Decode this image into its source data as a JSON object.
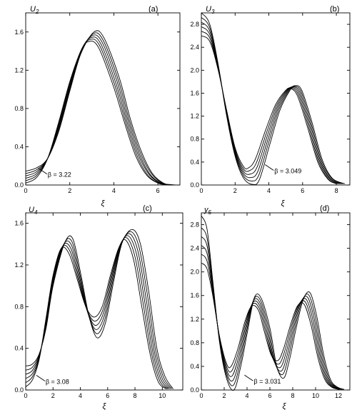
{
  "chart_data": [
    {
      "type": "line",
      "panel_tag": "(a)",
      "ylabel": "U2",
      "ylabel_main": "U",
      "ylabel_sub": "2",
      "xlabel": "ξ",
      "xlim": [
        0,
        7
      ],
      "ylim": [
        0,
        1.8
      ],
      "xticks": [
        0,
        2,
        4,
        6
      ],
      "yticks": [
        0.0,
        0.4,
        0.8,
        1.2,
        1.6
      ],
      "ytick_labels": [
        "0.0",
        "0.4",
        "0.8",
        "1.2",
        "1.6"
      ],
      "annotation": "β = 3.22",
      "annotation_at": [
        0.9,
        0.13
      ],
      "series": [
        {
          "x": [
            0,
            0.5,
            1,
            1.5,
            2,
            2.5,
            2.85,
            3.3,
            4,
            4.5,
            5,
            5.5,
            6,
            6.3,
            6.6
          ],
          "y": [
            0.02,
            0.08,
            0.28,
            0.66,
            1.08,
            1.4,
            1.5,
            1.44,
            1.02,
            0.64,
            0.3,
            0.1,
            0.02,
            0.005,
            0
          ]
        },
        {
          "x": [
            0,
            0.5,
            1,
            1.5,
            2,
            2.5,
            2.9,
            3.35,
            4.05,
            4.55,
            5.05,
            5.55,
            6.05,
            6.35,
            6.65
          ],
          "y": [
            0.045,
            0.1,
            0.28,
            0.64,
            1.06,
            1.4,
            1.52,
            1.46,
            1.04,
            0.65,
            0.31,
            0.1,
            0.02,
            0.005,
            0
          ]
        },
        {
          "x": [
            0,
            0.5,
            1,
            1.5,
            2,
            2.5,
            2.95,
            3.4,
            4.1,
            4.6,
            5.1,
            5.6,
            6.1,
            6.4,
            6.7
          ],
          "y": [
            0.07,
            0.12,
            0.28,
            0.62,
            1.04,
            1.4,
            1.54,
            1.48,
            1.06,
            0.66,
            0.32,
            0.11,
            0.02,
            0.005,
            0
          ]
        },
        {
          "x": [
            0,
            0.5,
            1,
            1.5,
            2,
            2.5,
            3.0,
            3.45,
            4.15,
            4.65,
            5.15,
            5.65,
            6.15,
            6.45,
            6.75
          ],
          "y": [
            0.095,
            0.14,
            0.28,
            0.6,
            1.02,
            1.39,
            1.56,
            1.5,
            1.08,
            0.67,
            0.33,
            0.11,
            0.02,
            0.005,
            0
          ]
        },
        {
          "x": [
            0,
            0.5,
            1,
            1.5,
            2,
            2.5,
            3.05,
            3.5,
            4.2,
            4.7,
            5.2,
            5.7,
            6.2,
            6.5,
            6.8
          ],
          "y": [
            0.12,
            0.16,
            0.28,
            0.58,
            1.0,
            1.38,
            1.58,
            1.52,
            1.1,
            0.68,
            0.34,
            0.12,
            0.02,
            0.005,
            0
          ]
        },
        {
          "x": [
            0,
            0.5,
            1,
            1.5,
            2,
            2.5,
            3.1,
            3.55,
            4.25,
            4.75,
            5.25,
            5.75,
            6.25,
            6.55,
            6.85
          ],
          "y": [
            0.145,
            0.18,
            0.28,
            0.56,
            0.98,
            1.37,
            1.6,
            1.54,
            1.12,
            0.69,
            0.35,
            0.12,
            0.02,
            0.005,
            0
          ]
        }
      ]
    },
    {
      "type": "line",
      "panel_tag": "(b)",
      "ylabel": "U3",
      "ylabel_main": "U",
      "ylabel_sub": "3",
      "xlabel": "ξ",
      "xlim": [
        0,
        8.8
      ],
      "ylim": [
        0,
        3.0
      ],
      "xticks": [
        0,
        2,
        4,
        6,
        8
      ],
      "yticks": [
        0.0,
        0.4,
        0.8,
        1.2,
        1.6,
        2.0,
        2.4,
        2.8
      ],
      "ytick_labels": [
        "0.0",
        "0.4",
        "0.8",
        "1.2",
        "1.6",
        "2.0",
        "2.4",
        "2.8"
      ],
      "annotation": "β = 3.049",
      "annotation_at": [
        4.2,
        0.28
      ],
      "series": [
        {
          "x": [
            0,
            0.5,
            1,
            1.5,
            2,
            2.5,
            2.8,
            3.2,
            3.8,
            4.4,
            5.0,
            5.3,
            5.7,
            6.3,
            6.9,
            7.5,
            8.0
          ],
          "y": [
            2.6,
            2.5,
            2.0,
            1.3,
            0.65,
            0.32,
            0.3,
            0.45,
            0.95,
            1.4,
            1.65,
            1.68,
            1.55,
            1.0,
            0.4,
            0.1,
            0.02
          ]
        },
        {
          "x": [
            0,
            0.5,
            1,
            1.5,
            2,
            2.5,
            2.85,
            3.25,
            3.85,
            4.45,
            5.05,
            5.35,
            5.75,
            6.35,
            6.95,
            7.55,
            8.1
          ],
          "y": [
            2.68,
            2.56,
            2.02,
            1.28,
            0.62,
            0.28,
            0.25,
            0.38,
            0.9,
            1.38,
            1.65,
            1.69,
            1.57,
            1.02,
            0.41,
            0.1,
            0.02
          ]
        },
        {
          "x": [
            0,
            0.5,
            1,
            1.5,
            2,
            2.5,
            2.9,
            3.3,
            3.9,
            4.5,
            5.1,
            5.4,
            5.8,
            6.4,
            7.0,
            7.6,
            8.2
          ],
          "y": [
            2.76,
            2.62,
            2.04,
            1.26,
            0.59,
            0.24,
            0.19,
            0.31,
            0.85,
            1.36,
            1.65,
            1.7,
            1.59,
            1.04,
            0.42,
            0.11,
            0.02
          ]
        },
        {
          "x": [
            0,
            0.5,
            1,
            1.5,
            2,
            2.5,
            2.95,
            3.35,
            3.95,
            4.55,
            5.15,
            5.45,
            5.85,
            6.45,
            7.05,
            7.65,
            8.3
          ],
          "y": [
            2.84,
            2.68,
            2.06,
            1.24,
            0.56,
            0.2,
            0.13,
            0.24,
            0.8,
            1.34,
            1.65,
            1.71,
            1.61,
            1.06,
            0.43,
            0.11,
            0.02
          ]
        },
        {
          "x": [
            0,
            0.5,
            1,
            1.5,
            2,
            2.5,
            3.0,
            3.4,
            4.0,
            4.6,
            5.2,
            5.5,
            5.9,
            6.5,
            7.1,
            7.7,
            8.4
          ],
          "y": [
            2.92,
            2.74,
            2.08,
            1.22,
            0.53,
            0.16,
            0.07,
            0.17,
            0.75,
            1.32,
            1.65,
            1.72,
            1.63,
            1.08,
            0.44,
            0.12,
            0.02
          ]
        },
        {
          "x": [
            0,
            0.5,
            1,
            1.5,
            2,
            2.5,
            3.05,
            3.45,
            4.05,
            4.65,
            5.25,
            5.55,
            5.95,
            6.55,
            7.15,
            7.75,
            8.5
          ],
          "y": [
            3.0,
            2.8,
            2.1,
            1.2,
            0.5,
            0.12,
            0.01,
            0.1,
            0.7,
            1.3,
            1.65,
            1.73,
            1.65,
            1.1,
            0.45,
            0.12,
            0.02
          ]
        }
      ]
    },
    {
      "type": "line",
      "panel_tag": "(c)",
      "ylabel": "U4",
      "ylabel_main": "U",
      "ylabel_sub": "4",
      "xlabel": "ξ",
      "xlim": [
        0,
        11.5
      ],
      "ylim": [
        0,
        1.7
      ],
      "xticks": [
        0,
        2,
        4,
        6,
        8,
        10
      ],
      "yticks": [
        0.0,
        0.4,
        0.8,
        1.2,
        1.6
      ],
      "ytick_labels": [
        "0.0",
        "0.4",
        "0.8",
        "1.2",
        "1.6"
      ],
      "annotation": "β = 3.08",
      "annotation_at": [
        1.3,
        0.1
      ],
      "series": [
        {
          "x": [
            0,
            0.5,
            1,
            1.5,
            2,
            2.6,
            3.2,
            3.8,
            4.4,
            5.0,
            5.6,
            6.2,
            6.8,
            7.3,
            7.9,
            8.5,
            9.1,
            9.7,
            10.3
          ],
          "y": [
            0.03,
            0.1,
            0.3,
            0.7,
            1.1,
            1.36,
            1.3,
            1.05,
            0.8,
            0.7,
            0.8,
            1.1,
            1.36,
            1.44,
            1.25,
            0.8,
            0.35,
            0.08,
            0.01
          ]
        },
        {
          "x": [
            0,
            0.5,
            1,
            1.5,
            2,
            2.65,
            3.25,
            3.85,
            4.45,
            5.05,
            5.65,
            6.25,
            6.85,
            7.4,
            8.0,
            8.6,
            9.2,
            9.8,
            10.4
          ],
          "y": [
            0.07,
            0.13,
            0.31,
            0.68,
            1.08,
            1.37,
            1.33,
            1.06,
            0.78,
            0.66,
            0.77,
            1.09,
            1.37,
            1.46,
            1.28,
            0.83,
            0.36,
            0.09,
            0.01
          ]
        },
        {
          "x": [
            0,
            0.5,
            1,
            1.5,
            2,
            2.7,
            3.3,
            3.9,
            4.5,
            5.1,
            5.7,
            6.3,
            6.9,
            7.5,
            8.1,
            8.7,
            9.3,
            9.9,
            10.5
          ],
          "y": [
            0.11,
            0.16,
            0.32,
            0.66,
            1.06,
            1.38,
            1.36,
            1.07,
            0.76,
            0.62,
            0.74,
            1.08,
            1.38,
            1.48,
            1.31,
            0.86,
            0.37,
            0.1,
            0.01
          ]
        },
        {
          "x": [
            0,
            0.5,
            1,
            1.5,
            2,
            2.75,
            3.35,
            3.95,
            4.55,
            5.15,
            5.75,
            6.35,
            6.95,
            7.6,
            8.2,
            8.8,
            9.4,
            10.0,
            10.6
          ],
          "y": [
            0.15,
            0.19,
            0.33,
            0.64,
            1.04,
            1.39,
            1.39,
            1.08,
            0.74,
            0.58,
            0.71,
            1.07,
            1.39,
            1.5,
            1.34,
            0.89,
            0.38,
            0.11,
            0.01
          ]
        },
        {
          "x": [
            0,
            0.5,
            1,
            1.5,
            2,
            2.8,
            3.4,
            4.0,
            4.6,
            5.2,
            5.8,
            6.4,
            7.0,
            7.7,
            8.3,
            8.9,
            9.5,
            10.1,
            10.7
          ],
          "y": [
            0.19,
            0.22,
            0.34,
            0.62,
            1.02,
            1.4,
            1.42,
            1.09,
            0.72,
            0.54,
            0.68,
            1.06,
            1.4,
            1.52,
            1.37,
            0.92,
            0.39,
            0.12,
            0.01
          ]
        },
        {
          "x": [
            0,
            0.5,
            1,
            1.5,
            2,
            2.85,
            3.45,
            4.05,
            4.65,
            5.25,
            5.85,
            6.45,
            7.05,
            7.8,
            8.4,
            9.0,
            9.6,
            10.2,
            10.8
          ],
          "y": [
            0.23,
            0.25,
            0.35,
            0.6,
            1.0,
            1.41,
            1.45,
            1.1,
            0.7,
            0.5,
            0.65,
            1.05,
            1.41,
            1.54,
            1.4,
            0.95,
            0.4,
            0.13,
            0.01
          ]
        }
      ]
    },
    {
      "type": "line",
      "panel_tag": "(d)",
      "ylabel": "y5",
      "ylabel_main": "y",
      "ylabel_sub": "5",
      "xlabel": "ξ",
      "xlim": [
        0,
        13
      ],
      "ylim": [
        0,
        3.0
      ],
      "xticks": [
        0,
        2,
        4,
        6,
        8,
        10,
        12
      ],
      "yticks": [
        0.0,
        0.4,
        0.8,
        1.2,
        1.6,
        2.0,
        2.4,
        2.8
      ],
      "ytick_labels": [
        "0.0",
        "0.4",
        "0.8",
        "1.2",
        "1.6",
        "2.0",
        "2.4",
        "2.8"
      ],
      "annotation": "β = 3.031",
      "annotation_at": [
        4.4,
        0.18
      ],
      "series": [
        {
          "x": [
            0,
            0.5,
            1,
            1.6,
            2.2,
            2.6,
            3.2,
            3.8,
            4.4,
            5.0,
            5.5,
            6.1,
            6.7,
            7.2,
            7.8,
            8.4,
            9.0,
            9.6,
            10.2,
            10.8,
            11.4,
            12.0
          ],
          "y": [
            2.15,
            2.05,
            1.6,
            0.9,
            0.45,
            0.4,
            0.7,
            1.15,
            1.42,
            1.35,
            1.0,
            0.6,
            0.5,
            0.7,
            1.1,
            1.42,
            1.45,
            1.1,
            0.55,
            0.18,
            0.05,
            0.01
          ]
        },
        {
          "x": [
            0,
            0.5,
            1,
            1.6,
            2.2,
            2.65,
            3.25,
            3.85,
            4.45,
            5.05,
            5.6,
            6.2,
            6.8,
            7.3,
            7.9,
            8.5,
            9.1,
            9.7,
            10.3,
            10.9,
            11.5,
            12.1
          ],
          "y": [
            2.3,
            2.18,
            1.65,
            0.88,
            0.4,
            0.32,
            0.64,
            1.12,
            1.45,
            1.39,
            1.01,
            0.56,
            0.44,
            0.66,
            1.09,
            1.44,
            1.49,
            1.13,
            0.56,
            0.18,
            0.05,
            0.01
          ]
        },
        {
          "x": [
            0,
            0.5,
            1,
            1.6,
            2.2,
            2.7,
            3.3,
            3.9,
            4.5,
            5.1,
            5.7,
            6.3,
            6.9,
            7.4,
            8.0,
            8.6,
            9.2,
            9.8,
            10.4,
            11.0,
            11.6,
            12.2
          ],
          "y": [
            2.45,
            2.31,
            1.7,
            0.86,
            0.35,
            0.24,
            0.58,
            1.09,
            1.48,
            1.43,
            1.02,
            0.52,
            0.38,
            0.62,
            1.08,
            1.46,
            1.53,
            1.16,
            0.57,
            0.18,
            0.05,
            0.01
          ]
        },
        {
          "x": [
            0,
            0.5,
            1,
            1.6,
            2.2,
            2.75,
            3.35,
            3.95,
            4.55,
            5.15,
            5.8,
            6.4,
            7.0,
            7.5,
            8.1,
            8.7,
            9.3,
            9.9,
            10.5,
            11.1,
            11.7,
            12.3
          ],
          "y": [
            2.6,
            2.44,
            1.75,
            0.84,
            0.3,
            0.16,
            0.52,
            1.06,
            1.51,
            1.47,
            1.03,
            0.48,
            0.32,
            0.58,
            1.07,
            1.48,
            1.57,
            1.19,
            0.58,
            0.18,
            0.05,
            0.01
          ]
        },
        {
          "x": [
            0,
            0.5,
            1,
            1.6,
            2.2,
            2.8,
            3.4,
            4.0,
            4.6,
            5.2,
            5.9,
            6.5,
            7.1,
            7.6,
            8.2,
            8.8,
            9.4,
            10.0,
            10.6,
            11.2,
            11.8,
            12.4
          ],
          "y": [
            2.75,
            2.57,
            1.8,
            0.82,
            0.25,
            0.08,
            0.46,
            1.03,
            1.54,
            1.51,
            1.04,
            0.44,
            0.26,
            0.54,
            1.06,
            1.5,
            1.61,
            1.22,
            0.59,
            0.18,
            0.05,
            0.01
          ]
        },
        {
          "x": [
            0,
            0.5,
            1,
            1.6,
            2.2,
            2.85,
            3.45,
            4.05,
            4.65,
            5.25,
            6.0,
            6.6,
            7.2,
            7.7,
            8.3,
            8.9,
            9.5,
            10.1,
            10.7,
            11.3,
            11.9,
            12.5
          ],
          "y": [
            2.95,
            2.72,
            1.85,
            0.8,
            0.2,
            0.0,
            0.4,
            1.0,
            1.57,
            1.55,
            1.05,
            0.4,
            0.2,
            0.5,
            1.05,
            1.52,
            1.65,
            1.25,
            0.6,
            0.18,
            0.05,
            0.01
          ]
        }
      ]
    }
  ]
}
